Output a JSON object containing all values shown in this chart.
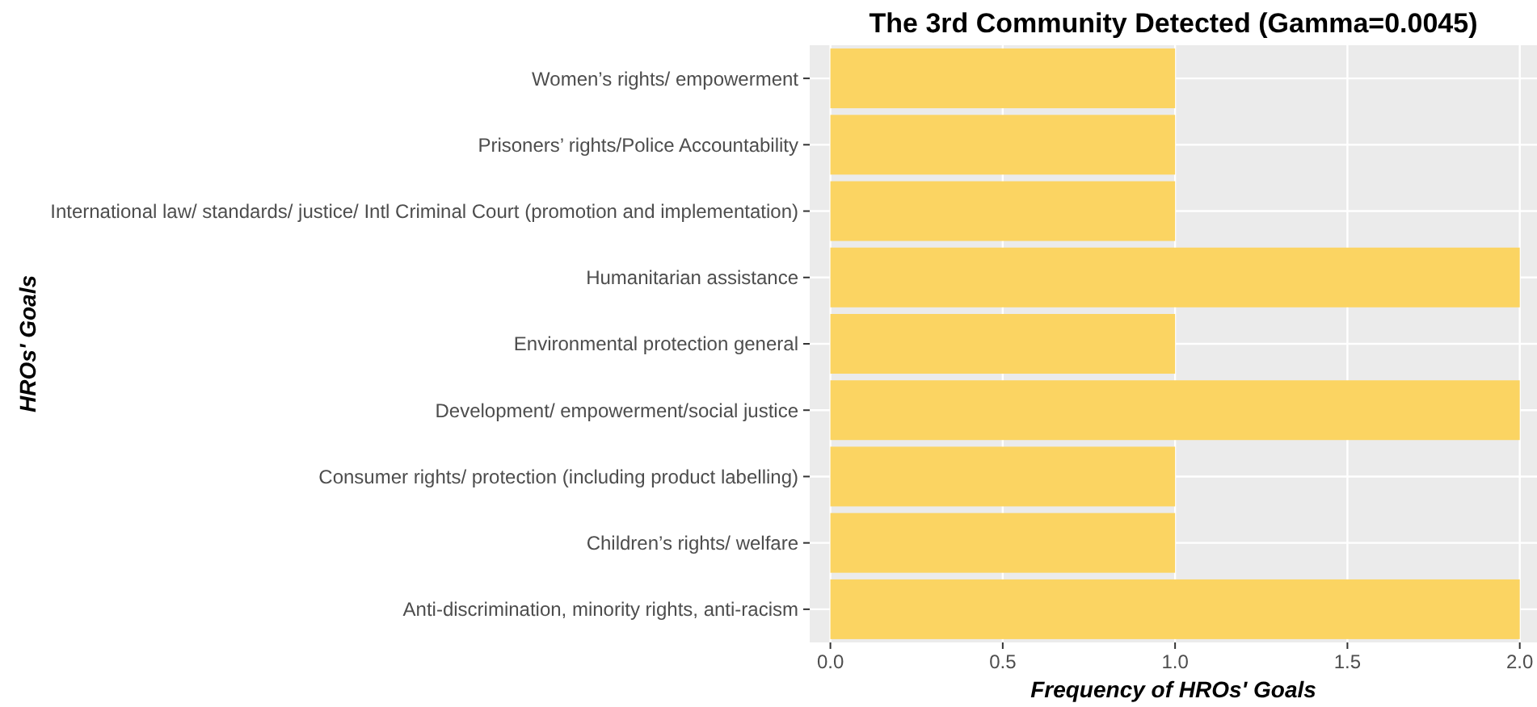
{
  "chart_data": {
    "type": "bar",
    "orientation": "horizontal",
    "title": "The 3rd Community Detected (Gamma=0.0045)",
    "xlabel": "Frequency of HROs' Goals",
    "ylabel": "HROs' Goals",
    "categories": [
      "Women’s rights/ empowerment",
      "Prisoners’ rights/Police Accountability",
      "International law/ standards/ justice/ Intl Criminal Court (promotion and implementation)",
      "Humanitarian assistance",
      "Environmental protection general",
      "Development/ empowerment/social justice",
      "Consumer rights/ protection (including product labelling)",
      "Children’s rights/ welfare",
      "Anti-discrimination, minority rights, anti-racism"
    ],
    "values": [
      1,
      1,
      1,
      2,
      1,
      2,
      1,
      1,
      2
    ],
    "color": "#fbd462",
    "xlim": [
      -0.06,
      2.05
    ],
    "xticks": [
      {
        "value": 0,
        "label": "0.0"
      },
      0.5,
      {
        "value": 1,
        "label": "1.0"
      },
      1.5,
      {
        "value": 2,
        "label": "2.0"
      }
    ],
    "grid": true
  }
}
